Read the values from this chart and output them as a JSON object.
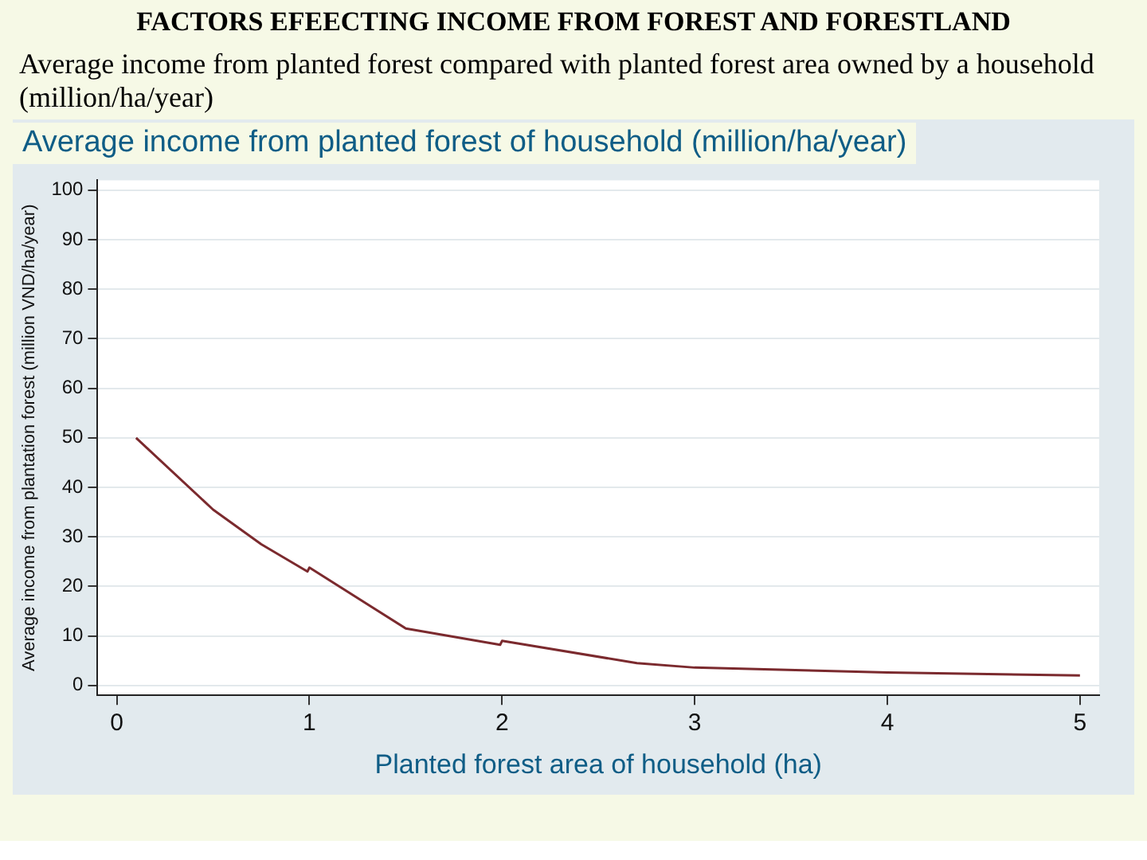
{
  "chart_data": {
    "type": "line",
    "title": "FACTORS EFEECTING INCOME FROM FOREST AND FORESTLAND",
    "subtitle": "Average income from planted forest compared with planted forest area owned by a household (million/ha/year)",
    "annotations": [
      "Average income from planted forest of household (million/ha/year)"
    ],
    "xlabel": "Planted forest area of household (ha)",
    "ylabel": "Average income from plantation forest (million VND/ha/year)",
    "series": [
      {
        "color": "#7b2a2e",
        "x": [
          0.1,
          0.5,
          0.75,
          0.99,
          1.0,
          1.5,
          1.99,
          2.0,
          2.7,
          3,
          4,
          5
        ],
        "values": [
          50,
          35.5,
          28.5,
          23,
          23.8,
          11.5,
          8.2,
          9,
          4.5,
          3.6,
          2.6,
          2
        ]
      }
    ],
    "xlim": [
      -0.1,
      5.1
    ],
    "xticks": [
      0,
      1,
      2,
      3,
      4,
      5
    ],
    "ylim": [
      -2,
      102
    ],
    "yticks": [
      0,
      10,
      20,
      30,
      40,
      50,
      60,
      70,
      80,
      90,
      100
    ],
    "grid": "y",
    "legend": false,
    "marker": "none",
    "line_style": "solid"
  }
}
